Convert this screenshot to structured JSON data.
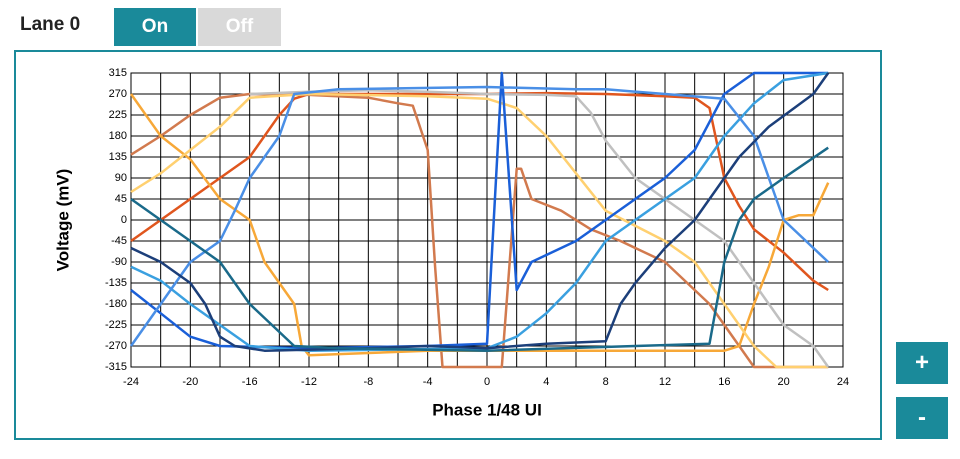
{
  "controls": {
    "lane_label": "Lane 0",
    "on": "On",
    "off": "Off",
    "zoom_in": "+",
    "zoom_out": "-"
  },
  "chart_data": {
    "type": "line",
    "xlabel": "Phase 1/48 UI",
    "ylabel": "Voltage (mV)",
    "xlim": [
      -24,
      24
    ],
    "ylim": [
      -315,
      315
    ],
    "xticks": [
      -24,
      -20,
      -16,
      -12,
      -8,
      -4,
      0,
      4,
      8,
      12,
      16,
      20,
      24
    ],
    "x_minor_ticks": [
      -22,
      -18,
      -14,
      -10,
      -6,
      -2,
      2,
      6,
      10,
      14,
      18,
      22
    ],
    "yticks": [
      315,
      270,
      225,
      180,
      135,
      90,
      45,
      0,
      -45,
      -90,
      -135,
      -180,
      -225,
      -270,
      -315
    ],
    "grid": true,
    "series": [
      {
        "color": "#e0561e",
        "x": [
          -24,
          -22,
          -20,
          -18,
          -16,
          -14,
          -13,
          -12,
          -8,
          -4,
          0,
          4,
          8,
          12,
          14,
          15,
          16,
          17,
          18,
          20,
          21,
          22,
          23
        ],
        "values": [
          -45,
          0,
          45,
          90,
          135,
          225,
          260,
          270,
          270,
          270,
          270,
          272,
          270,
          265,
          262,
          240,
          90,
          30,
          -20,
          -70,
          -100,
          -130,
          -150
        ]
      },
      {
        "color": "#d27a4e",
        "x": [
          -24,
          -22,
          -20,
          -18,
          -16,
          -12,
          -8,
          -6,
          -5,
          -4,
          -3.5,
          -3,
          1,
          2,
          2.3,
          3,
          5,
          7,
          9,
          12,
          15,
          17,
          18,
          23
        ],
        "values": [
          140,
          180,
          225,
          262,
          270,
          268,
          262,
          250,
          245,
          150,
          -100,
          -315,
          -315,
          110,
          110,
          45,
          20,
          -20,
          -45,
          -90,
          -180,
          -270,
          -315,
          -315
        ]
      },
      {
        "color": "#f7a838",
        "x": [
          -24,
          -22,
          -20,
          -18,
          -16,
          -15,
          -13,
          -12.5,
          -12,
          -4,
          4,
          12,
          16,
          17,
          18,
          19,
          20,
          21,
          22,
          23
        ],
        "values": [
          270,
          180,
          130,
          45,
          0,
          -90,
          -180,
          -270,
          -290,
          -280,
          -280,
          -280,
          -280,
          -270,
          -180,
          -100,
          0,
          10,
          10,
          80
        ]
      },
      {
        "color": "#ffd070",
        "x": [
          -24,
          -22,
          -20,
          -18,
          -16,
          -12,
          -4,
          0,
          2,
          4,
          6,
          8,
          12,
          14,
          16,
          18,
          19.5,
          23
        ],
        "values": [
          60,
          100,
          150,
          200,
          262,
          270,
          265,
          260,
          240,
          180,
          100,
          20,
          -45,
          -90,
          -180,
          -270,
          -315,
          -315
        ]
      },
      {
        "color": "#c0c0c0",
        "x": [
          -16,
          -12,
          -8,
          -4,
          0,
          4,
          6,
          7,
          8,
          10,
          12,
          14,
          16,
          18,
          20,
          22,
          23
        ],
        "values": [
          270,
          275,
          278,
          275,
          270,
          268,
          265,
          230,
          170,
          90,
          45,
          0,
          -45,
          -135,
          -225,
          -270,
          -315
        ]
      },
      {
        "color": "#1a5fd8",
        "x": [
          -24,
          -22,
          -20,
          -18,
          -12,
          -4,
          0,
          1,
          2,
          3,
          6,
          8,
          10,
          12,
          14,
          16,
          18,
          23
        ],
        "values": [
          -150,
          -200,
          -250,
          -270,
          -275,
          -270,
          -265,
          315,
          -150,
          -90,
          -45,
          0,
          45,
          90,
          150,
          270,
          315,
          315
        ]
      },
      {
        "color": "#3aa0e0",
        "x": [
          -24,
          -22,
          -20,
          -18,
          -16,
          -12,
          0,
          2,
          4,
          6,
          8,
          10,
          12,
          14,
          16,
          18,
          20,
          23
        ],
        "values": [
          -100,
          -130,
          -180,
          -225,
          -270,
          -280,
          -275,
          -250,
          -200,
          -135,
          -45,
          0,
          45,
          90,
          180,
          250,
          300,
          315
        ]
      },
      {
        "color": "#4a8fe6",
        "x": [
          -24,
          -22,
          -20,
          -18,
          -17,
          -16,
          -15,
          -14,
          -13,
          -10,
          0,
          6,
          8,
          12,
          16,
          18,
          20,
          23
        ],
        "values": [
          -270,
          -180,
          -90,
          -45,
          20,
          90,
          135,
          180,
          270,
          280,
          285,
          280,
          280,
          270,
          260,
          180,
          0,
          -90
        ]
      },
      {
        "color": "#1c3f7a",
        "x": [
          -24,
          -22,
          -20,
          -19,
          -18,
          -17,
          -15,
          -8,
          -4,
          0,
          4,
          8,
          9,
          10,
          12,
          14,
          15,
          17,
          19,
          22,
          23
        ],
        "values": [
          -60,
          -90,
          -135,
          -180,
          -250,
          -270,
          -280,
          -275,
          -270,
          -275,
          -265,
          -260,
          -180,
          -135,
          -60,
          0,
          45,
          135,
          200,
          270,
          315
        ]
      },
      {
        "color": "#1a6a8a",
        "x": [
          -24,
          -22,
          -20,
          -18,
          -16,
          -13,
          -10,
          0,
          10,
          15,
          16,
          17,
          18,
          20,
          23
        ],
        "values": [
          45,
          0,
          -45,
          -90,
          -180,
          -270,
          -275,
          -280,
          -270,
          -265,
          -90,
          0,
          45,
          90,
          155
        ]
      }
    ]
  }
}
